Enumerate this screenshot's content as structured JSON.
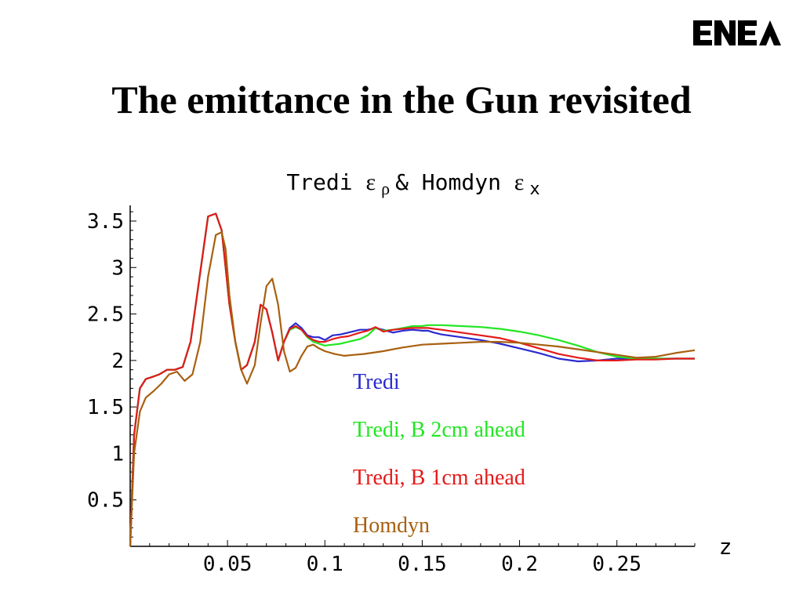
{
  "slide": {
    "title": "The emittance in the Gun revisited",
    "logo_text": "ENEA"
  },
  "chart_data": {
    "type": "line",
    "title": {
      "prefix": "Tredi ",
      "sym1": "ε",
      "sub1": "ρ",
      "middle": " & Homdyn ",
      "sym2": "ε",
      "sub2": "x"
    },
    "xlabel": "z",
    "ylabel": "",
    "xlim": [
      0,
      0.29
    ],
    "ylim": [
      0,
      3.6
    ],
    "xticks": [
      0.05,
      0.1,
      0.15,
      0.2,
      0.25
    ],
    "xtick_labels": [
      "0.05",
      "0.1",
      "0.15",
      "0.2",
      "0.25"
    ],
    "yticks": [
      0.5,
      1,
      1.5,
      2,
      2.5,
      3,
      3.5
    ],
    "ytick_labels": [
      "0.5",
      "1",
      "1.5",
      "2",
      "2.5",
      "3",
      "3.5"
    ],
    "legend_placement": "inside-center",
    "series": [
      {
        "name": "Tredi",
        "color": "#2a2ad0",
        "x": [
          0,
          0.002,
          0.005,
          0.008,
          0.011,
          0.015,
          0.019,
          0.023,
          0.027,
          0.031,
          0.035,
          0.04,
          0.044,
          0.047,
          0.049,
          0.051,
          0.054,
          0.057,
          0.06,
          0.064,
          0.067,
          0.07,
          0.073,
          0.076,
          0.079,
          0.082,
          0.085,
          0.088,
          0.091,
          0.094,
          0.097,
          0.1,
          0.104,
          0.108,
          0.112,
          0.118,
          0.122,
          0.126,
          0.13,
          0.135,
          0.14,
          0.145,
          0.15,
          0.153,
          0.156,
          0.16,
          0.17,
          0.18,
          0.19,
          0.2,
          0.21,
          0.22,
          0.23,
          0.24,
          0.25,
          0.26,
          0.27,
          0.28,
          0.29
        ],
        "y": [
          0,
          1.2,
          1.7,
          1.8,
          1.82,
          1.85,
          1.9,
          1.9,
          1.93,
          2.2,
          2.8,
          3.55,
          3.58,
          3.4,
          3.0,
          2.6,
          2.2,
          1.9,
          1.95,
          2.2,
          2.6,
          2.55,
          2.3,
          2.0,
          2.2,
          2.35,
          2.4,
          2.35,
          2.27,
          2.25,
          2.25,
          2.22,
          2.27,
          2.28,
          2.3,
          2.33,
          2.33,
          2.35,
          2.33,
          2.3,
          2.32,
          2.33,
          2.32,
          2.32,
          2.3,
          2.28,
          2.25,
          2.22,
          2.18,
          2.13,
          2.08,
          2.02,
          1.99,
          2.0,
          2.02,
          2.02,
          2.02,
          2.02,
          2.02
        ]
      },
      {
        "name": "Tredi, B 2cm ahead",
        "color": "#22e622",
        "x": [
          0,
          0.002,
          0.005,
          0.008,
          0.011,
          0.015,
          0.019,
          0.023,
          0.027,
          0.031,
          0.035,
          0.04,
          0.044,
          0.047,
          0.049,
          0.051,
          0.054,
          0.057,
          0.06,
          0.064,
          0.067,
          0.07,
          0.073,
          0.076,
          0.079,
          0.082,
          0.085,
          0.088,
          0.091,
          0.094,
          0.097,
          0.1,
          0.104,
          0.108,
          0.112,
          0.118,
          0.122,
          0.126,
          0.13,
          0.135,
          0.14,
          0.145,
          0.15,
          0.153,
          0.156,
          0.16,
          0.17,
          0.18,
          0.19,
          0.2,
          0.21,
          0.22,
          0.23,
          0.24,
          0.25,
          0.26,
          0.27,
          0.28,
          0.29
        ],
        "y": [
          0,
          1.2,
          1.7,
          1.8,
          1.82,
          1.85,
          1.9,
          1.9,
          1.93,
          2.2,
          2.8,
          3.55,
          3.58,
          3.4,
          3.0,
          2.6,
          2.2,
          1.9,
          1.95,
          2.2,
          2.6,
          2.55,
          2.3,
          2.0,
          2.2,
          2.33,
          2.36,
          2.33,
          2.25,
          2.2,
          2.18,
          2.16,
          2.17,
          2.18,
          2.2,
          2.23,
          2.27,
          2.35,
          2.32,
          2.33,
          2.35,
          2.37,
          2.37,
          2.38,
          2.38,
          2.38,
          2.37,
          2.36,
          2.34,
          2.31,
          2.27,
          2.22,
          2.16,
          2.09,
          2.04,
          2.02,
          2.02,
          2.02,
          2.02
        ]
      },
      {
        "name": "Tredi, B 1cm ahead",
        "color": "#e41a1a",
        "x": [
          0,
          0.002,
          0.005,
          0.008,
          0.011,
          0.015,
          0.019,
          0.023,
          0.027,
          0.031,
          0.035,
          0.04,
          0.044,
          0.047,
          0.049,
          0.051,
          0.054,
          0.057,
          0.06,
          0.064,
          0.067,
          0.07,
          0.073,
          0.076,
          0.079,
          0.082,
          0.085,
          0.088,
          0.091,
          0.094,
          0.097,
          0.1,
          0.104,
          0.108,
          0.112,
          0.118,
          0.122,
          0.126,
          0.13,
          0.135,
          0.14,
          0.145,
          0.15,
          0.153,
          0.156,
          0.16,
          0.17,
          0.18,
          0.19,
          0.2,
          0.21,
          0.22,
          0.23,
          0.24,
          0.25,
          0.26,
          0.27,
          0.28,
          0.29
        ],
        "y": [
          0,
          1.2,
          1.7,
          1.8,
          1.82,
          1.85,
          1.9,
          1.9,
          1.93,
          2.2,
          2.8,
          3.55,
          3.58,
          3.4,
          3.0,
          2.6,
          2.2,
          1.9,
          1.95,
          2.2,
          2.6,
          2.55,
          2.3,
          2.0,
          2.2,
          2.34,
          2.37,
          2.33,
          2.26,
          2.22,
          2.2,
          2.2,
          2.23,
          2.25,
          2.26,
          2.3,
          2.32,
          2.36,
          2.31,
          2.33,
          2.34,
          2.35,
          2.35,
          2.35,
          2.34,
          2.33,
          2.3,
          2.27,
          2.24,
          2.19,
          2.13,
          2.07,
          2.03,
          2.0,
          2.0,
          2.01,
          2.01,
          2.02,
          2.02
        ]
      },
      {
        "name": "Homdyn",
        "color": "#a86010",
        "x": [
          0,
          0.002,
          0.005,
          0.008,
          0.012,
          0.016,
          0.02,
          0.024,
          0.028,
          0.032,
          0.036,
          0.04,
          0.044,
          0.047,
          0.049,
          0.051,
          0.054,
          0.057,
          0.06,
          0.064,
          0.067,
          0.07,
          0.073,
          0.076,
          0.079,
          0.082,
          0.085,
          0.088,
          0.091,
          0.094,
          0.097,
          0.1,
          0.105,
          0.11,
          0.115,
          0.12,
          0.13,
          0.14,
          0.15,
          0.16,
          0.17,
          0.18,
          0.19,
          0.2,
          0.21,
          0.22,
          0.23,
          0.24,
          0.25,
          0.26,
          0.27,
          0.28,
          0.29
        ],
        "y": [
          0,
          1.0,
          1.45,
          1.6,
          1.67,
          1.75,
          1.85,
          1.88,
          1.78,
          1.85,
          2.2,
          2.9,
          3.35,
          3.38,
          3.2,
          2.7,
          2.2,
          1.9,
          1.75,
          1.95,
          2.4,
          2.8,
          2.88,
          2.6,
          2.1,
          1.88,
          1.92,
          2.05,
          2.15,
          2.17,
          2.13,
          2.1,
          2.07,
          2.05,
          2.06,
          2.07,
          2.1,
          2.14,
          2.17,
          2.18,
          2.19,
          2.2,
          2.2,
          2.19,
          2.17,
          2.15,
          2.12,
          2.09,
          2.06,
          2.03,
          2.04,
          2.08,
          2.11
        ]
      }
    ]
  }
}
